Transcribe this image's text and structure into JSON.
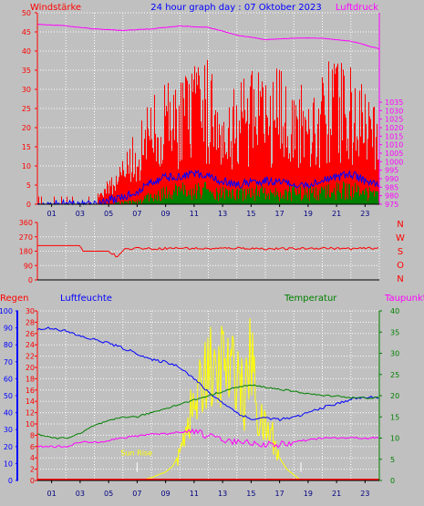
{
  "chart_data": [
    {
      "type": "line",
      "id": "wind-pressure",
      "title": "24 hour graph day : 07 Oktober 2023",
      "left_axis_label": "Windstärke",
      "right_axis_label": "Luftdruck",
      "left_ylim": [
        0,
        50
      ],
      "left_ticks": [
        "0",
        "5",
        "10",
        "15",
        "20",
        "25",
        "30",
        "35",
        "40",
        "45",
        "50"
      ],
      "right_ylim": [
        975,
        1087.5
      ],
      "right_ticks": [
        "975",
        "980",
        "985",
        "990",
        "995",
        "1000",
        "1005",
        "1010",
        "1015",
        "1020",
        "1025",
        "1030",
        "1035"
      ],
      "xlim": [
        0,
        24
      ],
      "x_ticks": [
        "01",
        "03",
        "05",
        "07",
        "09",
        "11",
        "13",
        "15",
        "17",
        "19",
        "21",
        "23"
      ],
      "grid": true,
      "colors": {
        "gust": "#ff0000",
        "wind": "#008000",
        "avg": "#0000ff",
        "pressure": "#ff00ff"
      },
      "series": [
        {
          "key": "pressure",
          "x": [
            0,
            2,
            4,
            6,
            8,
            10,
            12,
            14,
            16,
            18,
            20,
            22,
            24
          ],
          "values": [
            1080.7,
            1079.8,
            1078.0,
            1077.1,
            1078.0,
            1079.8,
            1078.9,
            1074.4,
            1071.7,
            1072.6,
            1072.6,
            1070.8,
            1066.3
          ]
        },
        {
          "key": "gust_envelope",
          "x": [
            0,
            2,
            4,
            5,
            6,
            7,
            8,
            9,
            10,
            11,
            12,
            13,
            14,
            15,
            16,
            17,
            18,
            19,
            20,
            21,
            22,
            23,
            24
          ],
          "values": [
            2,
            2,
            2,
            6,
            9,
            16,
            22,
            25,
            26,
            28,
            30,
            24,
            26,
            28,
            26,
            28,
            25,
            24,
            28,
            30,
            28,
            24,
            20
          ]
        },
        {
          "key": "avg_wind",
          "x": [
            0,
            2,
            4,
            5,
            6,
            7,
            8,
            9,
            10,
            11,
            12,
            13,
            14,
            15,
            16,
            17,
            18,
            19,
            20,
            21,
            22,
            23,
            24
          ],
          "values": [
            0,
            0,
            0,
            1,
            2,
            3,
            6,
            7,
            7,
            8,
            7,
            6,
            5,
            6,
            6,
            6,
            5,
            5,
            6,
            7,
            8,
            6,
            5
          ]
        },
        {
          "key": "wind_envelope",
          "x": [
            0,
            2,
            4,
            5,
            6,
            7,
            8,
            9,
            10,
            11,
            12,
            13,
            14,
            15,
            16,
            17,
            18,
            19,
            20,
            21,
            22,
            23,
            24
          ],
          "values": [
            0,
            0,
            0,
            0,
            1,
            1,
            3,
            4,
            5,
            5,
            5,
            4,
            4,
            4,
            5,
            4,
            4,
            4,
            4,
            5,
            5,
            4,
            3
          ]
        }
      ]
    },
    {
      "type": "line",
      "id": "wind-direction",
      "left_ylim": [
        0,
        360
      ],
      "left_ticks": [
        "0",
        "90",
        "180",
        "270",
        "360"
      ],
      "right_labels": [
        "N",
        "W",
        "S",
        "O",
        "N"
      ],
      "xlim": [
        0,
        24
      ],
      "color": "#ff0000",
      "series": [
        {
          "key": "direction",
          "x": [
            0,
            2,
            3,
            3.2,
            4,
            5,
            5.6,
            6,
            7,
            8,
            10,
            12,
            14,
            16,
            18,
            20,
            22,
            24
          ],
          "values": [
            215,
            215,
            215,
            180,
            180,
            180,
            145,
            190,
            200,
            195,
            200,
            195,
            200,
            195,
            195,
            200,
            195,
            200
          ]
        }
      ]
    },
    {
      "type": "line",
      "id": "rain-humidity-temperature",
      "labels": {
        "rain": "Regen",
        "humidity": "Luftfeuchte",
        "temperature": "Temperatur",
        "dewpoint": "Taupunkt"
      },
      "humidity_ylim": [
        0,
        100
      ],
      "humidity_ticks": [
        "0",
        "10",
        "20",
        "30",
        "40",
        "50",
        "60",
        "70",
        "80",
        "90",
        "100"
      ],
      "rain_ylim": [
        0,
        30
      ],
      "rain_ticks": [
        "0",
        "2",
        "4",
        "6",
        "8",
        "10",
        "12",
        "14",
        "16",
        "18",
        "20",
        "22",
        "24",
        "26",
        "28",
        "30"
      ],
      "temp_ylim": [
        0,
        40
      ],
      "temp_ticks": [
        "0",
        "5",
        "10",
        "15",
        "20",
        "25",
        "30",
        "35",
        "40"
      ],
      "xlim": [
        0,
        24
      ],
      "x_ticks": [
        "01",
        "03",
        "05",
        "07",
        "09",
        "11",
        "13",
        "15",
        "17",
        "19",
        "21",
        "23"
      ],
      "colors": {
        "humidity": "#0000ff",
        "temperature": "#008000",
        "dewpoint": "#ff00ff",
        "solar": "#ffff00",
        "rain": "#ff0000",
        "tick_label": "#ffff00"
      },
      "annotations": [
        {
          "text": "Sun Rise",
          "x": 7.0
        },
        {
          "text": "",
          "x": 18.5
        }
      ],
      "series": [
        {
          "key": "humidity",
          "x": [
            0,
            1,
            2,
            3,
            4,
            5,
            6,
            7,
            8,
            9,
            10,
            11,
            12,
            13,
            14,
            15,
            16,
            17,
            18,
            19,
            20,
            21,
            22,
            23,
            24
          ],
          "values": [
            89,
            90,
            88,
            85,
            83,
            81,
            78,
            75,
            71,
            70,
            67,
            60,
            52,
            46,
            40,
            36,
            37,
            36,
            37,
            40,
            43,
            45,
            48,
            49,
            49
          ]
        },
        {
          "key": "temperature",
          "x": [
            0,
            1,
            2,
            3,
            4,
            5,
            6,
            7,
            8,
            9,
            10,
            11,
            12,
            13,
            14,
            15,
            16,
            17,
            18,
            19,
            20,
            21,
            22,
            23,
            24
          ],
          "values": [
            11,
            10,
            10,
            11,
            13,
            14,
            15,
            15,
            16,
            17,
            18,
            19,
            20,
            21,
            22,
            22.5,
            22,
            21.5,
            21,
            20.5,
            20,
            20,
            19.5,
            19.5,
            19.5
          ]
        },
        {
          "key": "dewpoint",
          "x": [
            0,
            1,
            2,
            3,
            4,
            5,
            6,
            7,
            8,
            9,
            10,
            11,
            12,
            13,
            14,
            15,
            16,
            17,
            18,
            19,
            20,
            21,
            22,
            23,
            24
          ],
          "values": [
            8,
            8,
            8,
            9,
            9,
            9.5,
            10,
            10.5,
            11,
            11,
            11.5,
            11.5,
            10.5,
            9.5,
            9,
            9,
            8.5,
            8.5,
            9,
            9.5,
            10,
            10,
            10,
            10,
            10
          ]
        },
        {
          "key": "solar",
          "x": [
            0,
            6.5,
            7,
            7.5,
            8,
            8.5,
            9,
            9.5,
            10,
            10.5,
            11,
            11.5,
            12,
            12.5,
            13,
            13.5,
            14,
            14.5,
            15,
            15.5,
            16,
            16.5,
            17,
            17.5,
            18,
            18.5,
            24
          ],
          "values": [
            0,
            0,
            0,
            0.2,
            0.5,
            1,
            1.5,
            2.5,
            5,
            12,
            14,
            18,
            25,
            18,
            24,
            20,
            23,
            15,
            25,
            12,
            10,
            9,
            4,
            2,
            1,
            0,
            0
          ]
        },
        {
          "key": "rain",
          "x": [
            0,
            24
          ],
          "values": [
            0,
            0
          ]
        }
      ]
    }
  ]
}
